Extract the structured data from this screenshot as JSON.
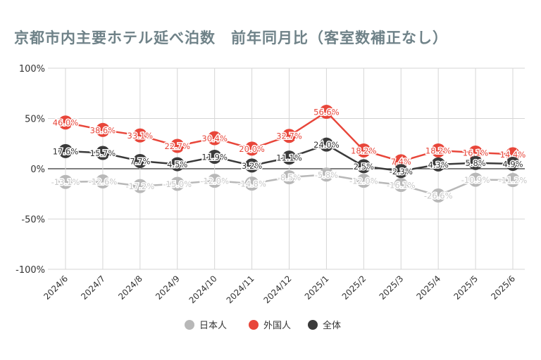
{
  "chart_data": {
    "type": "line",
    "title": "京都市内主要ホテル延べ泊数　前年同月比（客室数補正なし）",
    "categories": [
      "2024/6",
      "2024/7",
      "2024/8",
      "2024/9",
      "2024/10",
      "2024/11",
      "2024/12",
      "2025/1",
      "2025/2",
      "2025/3",
      "2025/4",
      "2025/5",
      "2025/6"
    ],
    "ylim": [
      -100,
      100
    ],
    "yticks": [
      "100%",
      "50%",
      "0%",
      "-50%",
      "-100%"
    ],
    "grid": true,
    "legend_position": "bottom",
    "series": [
      {
        "name": "日本人",
        "color": "#b8b8b8",
        "values": [
          -13.1,
          -12.6,
          -17.2,
          -15.0,
          -12.0,
          -14.8,
          -8.5,
          -5.8,
          -12.0,
          -16.1,
          -26.6,
          -10.9,
          -11.2
        ]
      },
      {
        "name": "外国人",
        "color": "#e8463a",
        "values": [
          46.0,
          38.6,
          33.1,
          22.7,
          30.4,
          20.0,
          32.7,
          56.6,
          18.2,
          7.4,
          18.2,
          16.1,
          14.4
        ]
      },
      {
        "name": "全体",
        "color": "#3a3a3a",
        "values": [
          17.6,
          15.7,
          7.7,
          4.5,
          11.9,
          3.2,
          11.1,
          24.0,
          2.5,
          -2.3,
          4.3,
          5.8,
          4.9
        ]
      }
    ]
  }
}
